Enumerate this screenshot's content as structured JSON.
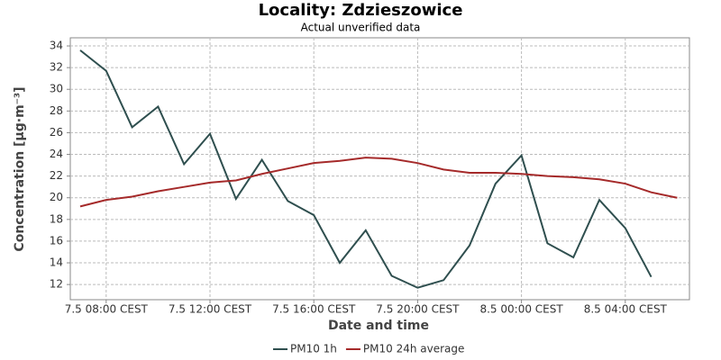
{
  "chart_data": {
    "type": "line",
    "title": "Locality: Zdzieszowice",
    "subtitle": "Actual unverified data",
    "x_label": "Date and time",
    "y_label": "Concentration [µg·m⁻³]",
    "categories": [
      null,
      "7.5 08:00 CEST",
      null,
      null,
      null,
      "7.5 12:00 CEST",
      null,
      null,
      null,
      "7.5 16:00 CEST",
      null,
      null,
      null,
      "7.5 20:00 CEST",
      null,
      null,
      null,
      "8.5 00:00 CEST",
      null,
      null,
      null,
      "8.5 04:00 CEST",
      null,
      null
    ],
    "series": [
      {
        "name": "PM10 1h",
        "color": "#2f4f4f",
        "values": [
          33.6,
          31.7,
          26.5,
          28.4,
          23.1,
          25.9,
          19.9,
          23.5,
          19.7,
          18.4,
          14.0,
          17.0,
          12.8,
          11.7,
          12.4,
          15.6,
          21.3,
          23.9,
          15.8,
          14.5,
          19.8,
          17.2,
          12.7,
          null
        ]
      },
      {
        "name": "PM10 24h average",
        "color": "#a52a2a",
        "values": [
          19.2,
          19.8,
          20.1,
          20.6,
          21.0,
          21.4,
          21.6,
          22.2,
          22.7,
          23.2,
          23.4,
          23.7,
          23.6,
          23.2,
          22.6,
          22.3,
          22.3,
          22.2,
          22.0,
          21.9,
          21.7,
          21.3,
          20.5,
          20.0
        ]
      }
    ],
    "ylim": [
      10.6,
      34.75
    ],
    "yticks": [
      12,
      14,
      16,
      18,
      20,
      22,
      24,
      26,
      28,
      30,
      32,
      34
    ],
    "grid": true
  }
}
